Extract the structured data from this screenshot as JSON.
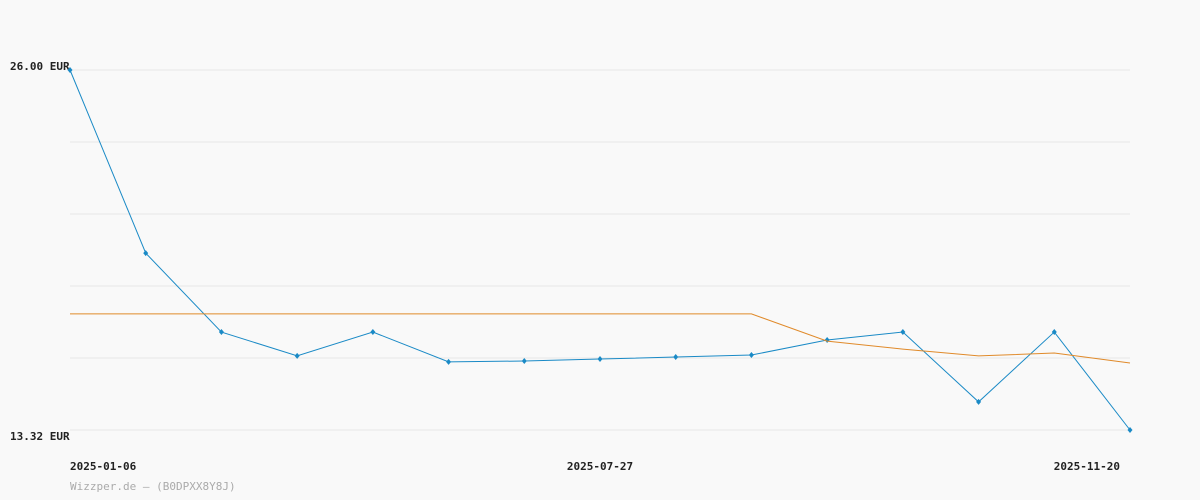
{
  "chart_data": {
    "type": "line",
    "categories": [
      "2025-01-06",
      null,
      null,
      null,
      null,
      null,
      null,
      "2025-07-27",
      null,
      null,
      null,
      null,
      null,
      null,
      "2025-11-20"
    ],
    "series": [
      {
        "color": "#1a8ac6",
        "markers": true,
        "values": [
          26.0,
          19.55,
          16.77,
          15.93,
          16.77,
          15.72,
          15.75,
          15.82,
          15.89,
          15.96,
          16.49,
          16.77,
          14.31,
          16.77,
          13.32
        ]
      },
      {
        "color": "#e08a2a",
        "markers": false,
        "values": [
          17.41,
          17.41,
          17.41,
          17.41,
          17.41,
          17.41,
          17.41,
          17.41,
          17.41,
          17.41,
          16.45,
          16.17,
          15.93,
          16.03,
          15.68
        ]
      }
    ],
    "ylim": [
      13.32,
      26.0
    ],
    "yticks": [
      {
        "value": 13.32,
        "label": "13.32 EUR"
      },
      {
        "value": 15.856,
        "label": null
      },
      {
        "value": 18.392,
        "label": null
      },
      {
        "value": 20.928,
        "label": null
      },
      {
        "value": 23.464,
        "label": null
      },
      {
        "value": 26.0,
        "label": "26.00 EUR"
      }
    ],
    "grid": true,
    "footer": "Wizzper.de – (B0DPXX8Y8J)"
  }
}
